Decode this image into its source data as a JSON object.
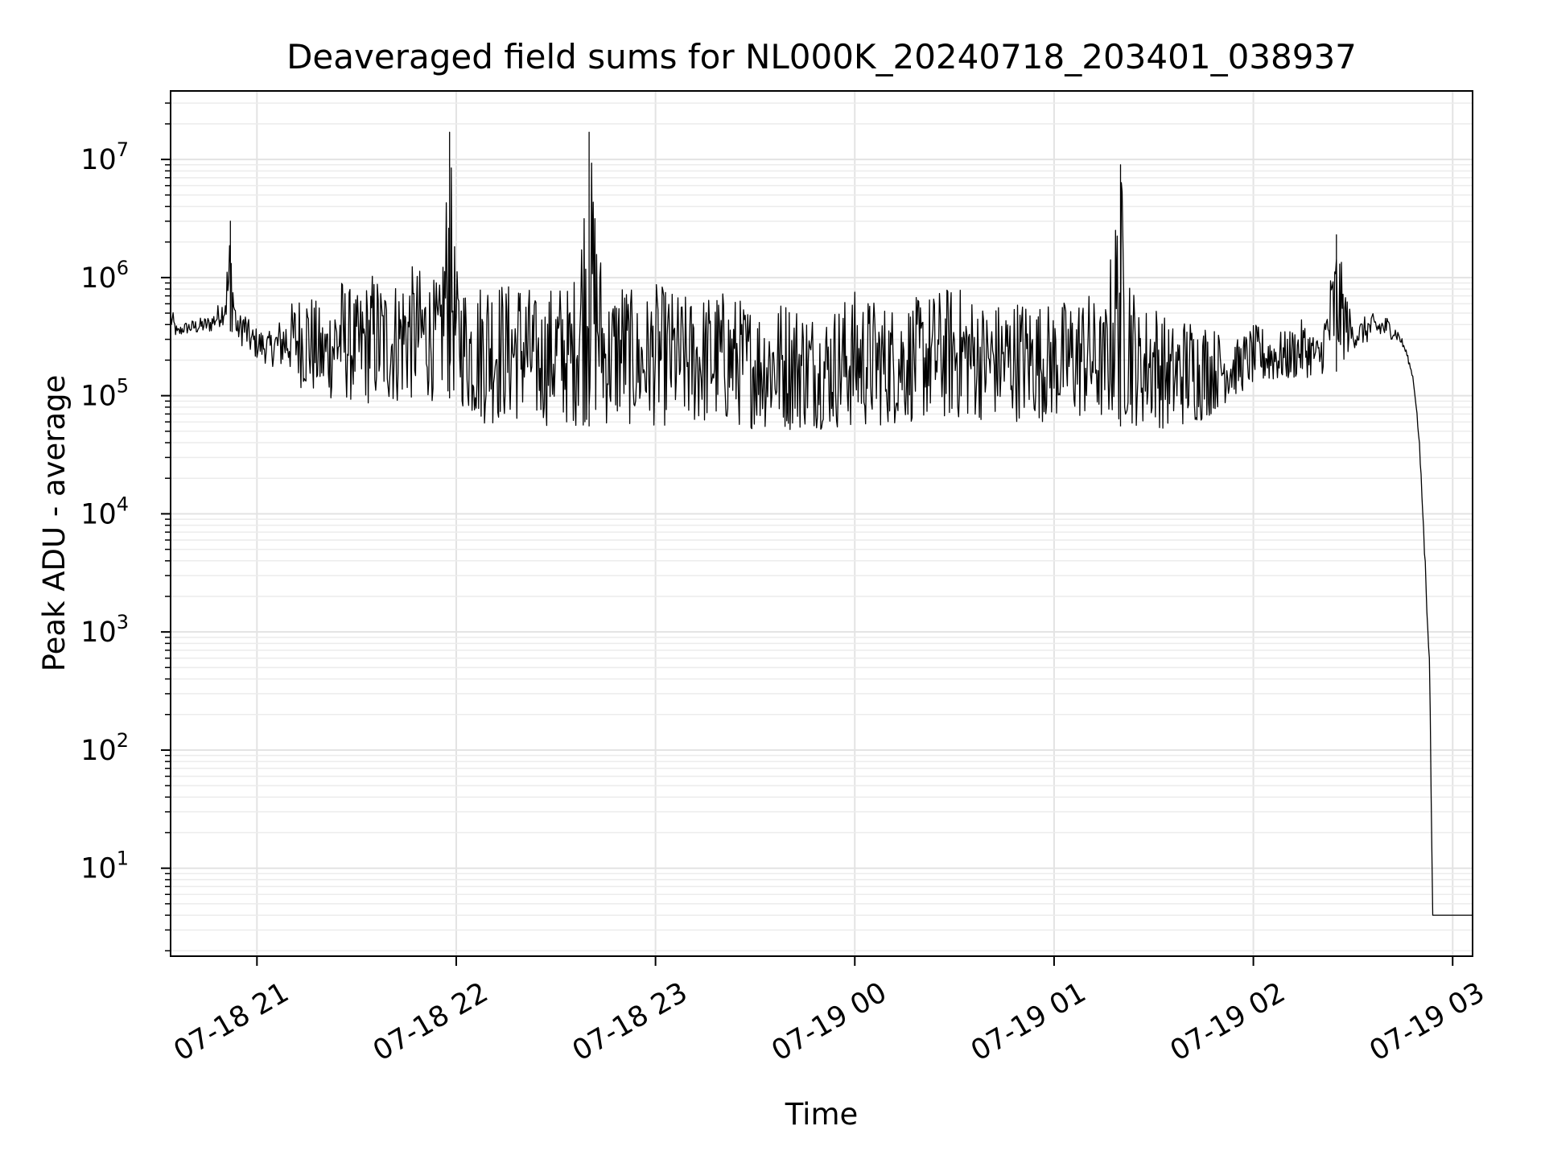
{
  "chart_data": {
    "type": "line",
    "title": "Deaveraged field sums for NL000K_20240718_203401_038937",
    "xlabel": "Time",
    "ylabel": "Peak ADU - average",
    "yscale": "log",
    "ylim": [
      1.8,
      38000000
    ],
    "xlim": [
      "07-18 20:34",
      "07-19 03:06"
    ],
    "grid": "major and minor",
    "line_color": "#000000",
    "x_ticks": [
      "07-18 21",
      "07-18 22",
      "07-18 23",
      "07-19 00",
      "07-19 01",
      "07-19 02",
      "07-19 03"
    ],
    "y_ticks": [
      {
        "value": 10,
        "base": "10",
        "exp": "1"
      },
      {
        "value": 100,
        "base": "10",
        "exp": "2"
      },
      {
        "value": 1000,
        "base": "10",
        "exp": "3"
      },
      {
        "value": 10000,
        "base": "10",
        "exp": "4"
      },
      {
        "value": 100000,
        "base": "10",
        "exp": "5"
      },
      {
        "value": 1000000,
        "base": "10",
        "exp": "6"
      },
      {
        "value": 10000000,
        "base": "10",
        "exp": "7"
      }
    ],
    "series": [
      {
        "x": [
          "07-18 20:34",
          "07-18 20:36",
          "07-18 20:38",
          "07-18 20:42",
          "07-18 20:46",
          "07-18 20:50",
          "07-18 20:52",
          "07-18 20:54",
          "07-18 20:56",
          "07-18 20:58",
          "07-18 21:00",
          "07-18 21:04",
          "07-18 21:10",
          "07-18 21:15",
          "07-18 21:20",
          "07-18 21:25",
          "07-18 21:30",
          "07-18 21:35",
          "07-18 21:40",
          "07-18 21:45",
          "07-18 21:50",
          "07-18 21:55",
          "07-18 21:58",
          "07-18 22:00",
          "07-18 22:05",
          "07-18 22:10",
          "07-18 22:15",
          "07-18 22:20",
          "07-18 22:25",
          "07-18 22:30",
          "07-18 22:35",
          "07-18 22:40",
          "07-18 22:45",
          "07-18 22:50",
          "07-18 22:55",
          "07-18 23:00",
          "07-18 23:10",
          "07-18 23:20",
          "07-18 23:30",
          "07-18 23:40",
          "07-18 23:50",
          "07-19 00:00",
          "07-19 00:10",
          "07-19 00:20",
          "07-19 00:30",
          "07-19 00:40",
          "07-19 00:50",
          "07-19 01:00",
          "07-19 01:10",
          "07-19 01:15",
          "07-19 01:20",
          "07-19 01:25",
          "07-19 01:30",
          "07-19 01:35",
          "07-19 01:40",
          "07-19 01:45",
          "07-19 01:50",
          "07-19 01:55",
          "07-19 02:00",
          "07-19 02:10",
          "07-19 02:15",
          "07-19 02:20",
          "07-19 02:25",
          "07-19 02:30",
          "07-19 02:35",
          "07-19 02:40",
          "07-19 02:42",
          "07-19 02:44",
          "07-19 02:46",
          "07-19 02:48",
          "07-19 02:49",
          "07-19 02:50",
          "07-19 02:51",
          "07-19 02:52",
          "07-19 02:53",
          "07-19 02:54",
          "07-19 02:55",
          "07-19 02:56",
          "07-19 02:57",
          "07-19 02:58",
          "07-19 03:00",
          "07-19 03:02",
          "07-19 03:04",
          "07-19 03:06"
        ],
        "y": [
          600000,
          380000,
          420000,
          450000,
          480000,
          700000,
          3000000,
          420000,
          600000,
          400000,
          380000,
          350000,
          600000,
          900000,
          500000,
          1100000,
          700000,
          1200000,
          900000,
          1300000,
          1200000,
          900000,
          17000000,
          1200000,
          800000,
          1300000,
          900000,
          1100000,
          600000,
          1000000,
          800000,
          17000000,
          700000,
          1100000,
          600000,
          900000,
          700000,
          800000,
          600000,
          700000,
          500000,
          800000,
          600000,
          700000,
          900000,
          600000,
          700000,
          600000,
          800000,
          500000,
          9000000,
          500000,
          700000,
          400000,
          500000,
          450000,
          350000,
          300000,
          400000,
          350000,
          450000,
          300000,
          2300000,
          400000,
          500000,
          480000,
          420000,
          350000,
          250000,
          150000,
          90000,
          40000,
          12000,
          3000,
          800,
          4,
          4,
          4,
          4,
          4,
          4,
          4,
          4,
          4
        ],
        "low_envelope": [
          350000,
          300000,
          330000,
          330000,
          340000,
          400000,
          350000,
          300000,
          250000,
          220000,
          200000,
          180000,
          150000,
          100000,
          90000,
          90000,
          85000,
          80000,
          80000,
          85000,
          90000,
          90000,
          95000,
          90000,
          60000,
          55000,
          60000,
          58000,
          55000,
          55000,
          55000,
          55000,
          55000,
          55000,
          55000,
          55000,
          53000,
          55000,
          52000,
          50000,
          52000,
          50000,
          55000,
          60000,
          60000,
          62000,
          60000,
          60000,
          60000,
          58000,
          55000,
          55000,
          55000,
          50000,
          55000,
          60000,
          80000,
          100000,
          120000,
          130000,
          140000,
          150000,
          160000,
          250000,
          280000,
          300000,
          300000,
          280000,
          220000,
          140000,
          80000,
          35000,
          9000,
          2000,
          500,
          4,
          4,
          4,
          4,
          4,
          4,
          4,
          4,
          4
        ]
      }
    ]
  }
}
